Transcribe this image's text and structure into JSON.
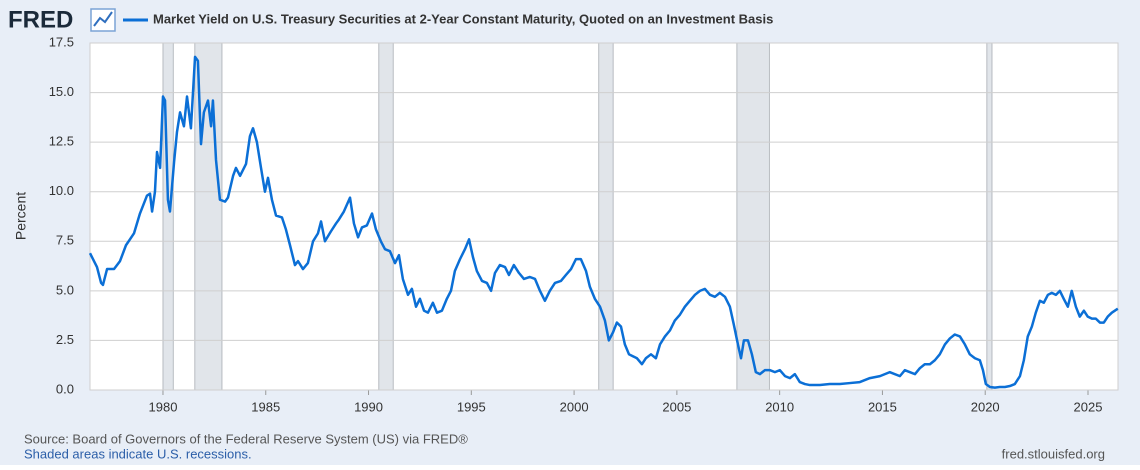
{
  "chart_data": {
    "type": "line",
    "logo": "FRED",
    "title": "Market Yield on U.S. Treasury Securities at 2-Year Constant Maturity, Quoted on an Investment Basis",
    "y_label": "Percent",
    "source": "Source: Board of Governors of the Federal Reserve System (US) via FRED®",
    "note": "Shaded areas indicate U.S. recessions.",
    "site": "fred.stlouisfed.org",
    "xlim": [
      1976.45,
      2026.46
    ],
    "ylim": [
      0,
      17.5
    ],
    "xticks": [
      1980,
      1985,
      1990,
      1995,
      2000,
      2005,
      2010,
      2015,
      2020,
      2025
    ],
    "yticks": [
      {
        "value": 0,
        "label": "0.0"
      },
      2.5,
      {
        "value": 5,
        "label": "5.0"
      },
      7.5,
      {
        "value": 10,
        "label": "10.0"
      },
      12.5,
      {
        "value": 15,
        "label": "15.0"
      },
      17.5
    ],
    "grid": true,
    "recessions": [
      {
        "start": 1980.0,
        "end": 1980.5
      },
      {
        "start": 1981.55,
        "end": 1982.87
      },
      {
        "start": 1990.5,
        "end": 1991.2
      },
      {
        "start": 2001.2,
        "end": 2001.9
      },
      {
        "start": 2007.92,
        "end": 2009.5
      },
      {
        "start": 2020.08,
        "end": 2020.33
      }
    ],
    "x": [
      1976.45,
      1976.79,
      1976.99,
      1977.08,
      1977.28,
      1977.62,
      1977.91,
      1978.2,
      1978.59,
      1978.88,
      1979.22,
      1979.37,
      1979.47,
      1979.61,
      1979.71,
      1979.86,
      1980.0,
      1980.1,
      1980.24,
      1980.34,
      1980.54,
      1980.68,
      1980.83,
      1981.02,
      1981.17,
      1981.36,
      1981.56,
      1981.7,
      1981.85,
      1981.99,
      1982.19,
      1982.34,
      1982.43,
      1982.58,
      1982.77,
      1983.02,
      1983.16,
      1983.41,
      1983.55,
      1983.75,
      1984.04,
      1984.23,
      1984.38,
      1984.57,
      1984.77,
      1984.96,
      1985.11,
      1985.3,
      1985.5,
      1985.79,
      1985.98,
      1986.18,
      1986.42,
      1986.57,
      1986.81,
      1987.05,
      1987.3,
      1987.54,
      1987.69,
      1987.88,
      1988.17,
      1988.42,
      1988.56,
      1988.8,
      1989.1,
      1989.29,
      1989.49,
      1989.68,
      1989.92,
      1990.17,
      1990.36,
      1990.6,
      1990.8,
      1991.04,
      1991.29,
      1991.48,
      1991.67,
      1991.92,
      1992.11,
      1992.31,
      1992.5,
      1992.7,
      1992.89,
      1993.13,
      1993.33,
      1993.57,
      1993.81,
      1994.01,
      1994.2,
      1994.45,
      1994.69,
      1994.89,
      1995.08,
      1995.27,
      1995.52,
      1995.76,
      1995.96,
      1996.15,
      1996.39,
      1996.64,
      1996.83,
      1997.07,
      1997.32,
      1997.56,
      1997.85,
      1998.1,
      1998.34,
      1998.58,
      1998.82,
      1999.07,
      1999.36,
      1999.6,
      1999.85,
      2000.09,
      2000.33,
      2000.58,
      2000.77,
      2001.01,
      2001.26,
      2001.5,
      2001.69,
      2001.89,
      2002.08,
      2002.28,
      2002.47,
      2002.67,
      2002.86,
      2003.06,
      2003.3,
      2003.49,
      2003.74,
      2003.98,
      2004.18,
      2004.42,
      2004.66,
      2004.9,
      2005.15,
      2005.39,
      2005.63,
      2005.88,
      2006.12,
      2006.36,
      2006.61,
      2006.85,
      2007.09,
      2007.34,
      2007.58,
      2007.77,
      2007.97,
      2008.12,
      2008.26,
      2008.46,
      2008.65,
      2008.84,
      2009.04,
      2009.28,
      2009.53,
      2009.77,
      2010.01,
      2010.26,
      2010.5,
      2010.74,
      2010.98,
      2011.23,
      2011.47,
      2011.96,
      2012.44,
      2012.93,
      2013.42,
      2013.9,
      2014.39,
      2014.88,
      2015.36,
      2015.85,
      2016.09,
      2016.34,
      2016.58,
      2016.82,
      2017.06,
      2017.31,
      2017.55,
      2017.79,
      2018.04,
      2018.28,
      2018.52,
      2018.77,
      2019.01,
      2019.25,
      2019.5,
      2019.74,
      2019.89,
      2020.03,
      2020.23,
      2020.47,
      2020.71,
      2020.96,
      2021.2,
      2021.44,
      2021.69,
      2021.88,
      2022.07,
      2022.27,
      2022.46,
      2022.66,
      2022.85,
      2023.05,
      2023.24,
      2023.44,
      2023.63,
      2023.82,
      2024.02,
      2024.21,
      2024.41,
      2024.6,
      2024.8,
      2024.99,
      2025.19,
      2025.38,
      2025.58,
      2025.77,
      2025.96,
      2026.16,
      2026.45
    ],
    "series": [
      {
        "name": "Market Yield on U.S. Treasury Securities at 2-Year Constant Maturity, Quoted on an Investment Basis",
        "color": "#0b6fd6",
        "values": [
          6.9,
          6.2,
          5.4,
          5.3,
          6.1,
          6.1,
          6.5,
          7.3,
          7.9,
          8.9,
          9.8,
          9.9,
          9.0,
          10.0,
          12.0,
          11.2,
          14.8,
          14.6,
          9.6,
          9.0,
          11.5,
          13.0,
          14.0,
          13.3,
          14.8,
          13.2,
          16.8,
          16.6,
          12.4,
          14.0,
          14.6,
          13.3,
          14.6,
          11.6,
          9.6,
          9.5,
          9.7,
          10.8,
          11.2,
          10.8,
          11.4,
          12.8,
          13.2,
          12.5,
          11.2,
          10.0,
          10.7,
          9.6,
          8.8,
          8.7,
          8.1,
          7.3,
          6.3,
          6.5,
          6.1,
          6.4,
          7.5,
          7.9,
          8.5,
          7.5,
          8.0,
          8.4,
          8.6,
          9.0,
          9.7,
          8.4,
          7.7,
          8.2,
          8.3,
          8.9,
          8.1,
          7.5,
          7.1,
          7.0,
          6.4,
          6.8,
          5.6,
          4.8,
          5.1,
          4.2,
          4.6,
          4.0,
          3.9,
          4.4,
          3.9,
          4.0,
          4.6,
          5.0,
          6.0,
          6.6,
          7.1,
          7.6,
          6.7,
          6.0,
          5.5,
          5.4,
          5.0,
          5.9,
          6.3,
          6.2,
          5.8,
          6.3,
          5.9,
          5.6,
          5.7,
          5.6,
          5.0,
          4.5,
          5.0,
          5.4,
          5.5,
          5.8,
          6.1,
          6.6,
          6.6,
          6.0,
          5.2,
          4.6,
          4.2,
          3.5,
          2.5,
          2.9,
          3.4,
          3.2,
          2.3,
          1.8,
          1.7,
          1.6,
          1.3,
          1.6,
          1.8,
          1.6,
          2.3,
          2.7,
          3.0,
          3.5,
          3.8,
          4.2,
          4.5,
          4.8,
          5.0,
          5.1,
          4.8,
          4.7,
          4.9,
          4.7,
          4.2,
          3.3,
          2.3,
          1.6,
          2.5,
          2.5,
          1.8,
          0.9,
          0.8,
          1.0,
          1.0,
          0.9,
          1.0,
          0.7,
          0.6,
          0.8,
          0.4,
          0.3,
          0.25,
          0.25,
          0.3,
          0.3,
          0.35,
          0.4,
          0.6,
          0.7,
          0.9,
          0.7,
          1.0,
          0.9,
          0.8,
          1.1,
          1.3,
          1.3,
          1.5,
          1.8,
          2.3,
          2.6,
          2.8,
          2.7,
          2.3,
          1.8,
          1.6,
          1.5,
          1.0,
          0.3,
          0.15,
          0.12,
          0.15,
          0.15,
          0.2,
          0.3,
          0.7,
          1.5,
          2.7,
          3.2,
          3.9,
          4.5,
          4.4,
          4.8,
          4.9,
          4.8,
          5.0,
          4.6,
          4.2,
          5.0,
          4.2,
          3.7,
          4.0,
          3.7,
          3.6,
          3.6,
          3.4,
          3.4,
          3.7,
          3.9,
          4.1
        ]
      }
    ]
  }
}
